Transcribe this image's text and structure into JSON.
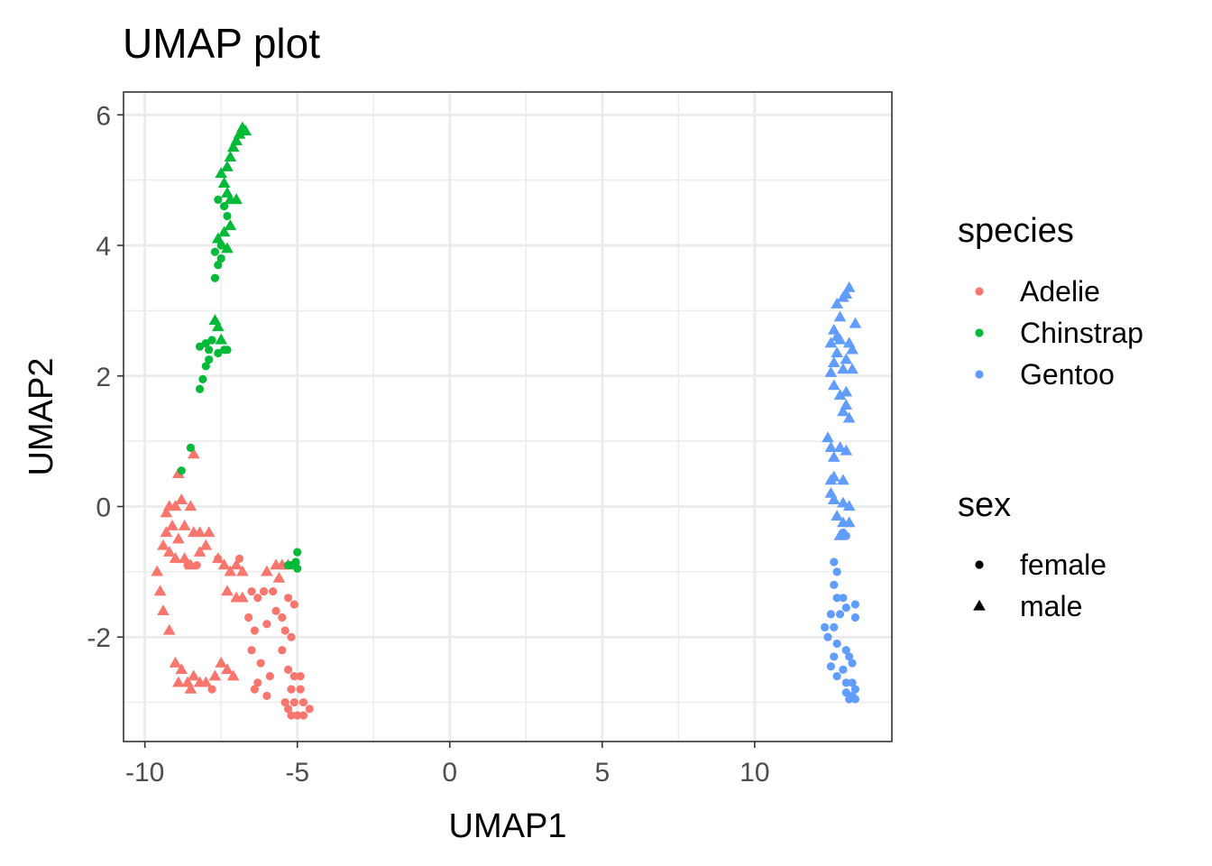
{
  "chart_data": {
    "type": "scatter",
    "title": "UMAP plot",
    "xlabel": "UMAP1",
    "ylabel": "UMAP2",
    "xlim": [
      -10.7,
      14.5
    ],
    "ylim": [
      -3.6,
      6.35
    ],
    "x_ticks": [
      -10,
      -5,
      0,
      5,
      10
    ],
    "x_tick_labels": [
      "-10",
      "-5",
      "0",
      "5",
      "10"
    ],
    "y_ticks": [
      -2,
      0,
      2,
      4,
      6
    ],
    "y_tick_labels": [
      "-2",
      "0",
      "2",
      "4",
      "6"
    ],
    "grid": true,
    "legend_position": "right",
    "colors": {
      "Adelie": "#F8766D",
      "Chinstrap": "#00BA38",
      "Gentoo": "#619CFF"
    },
    "legend": {
      "species": {
        "title": "species",
        "items": [
          "Adelie",
          "Chinstrap",
          "Gentoo"
        ]
      },
      "sex": {
        "title": "sex",
        "items": [
          "female",
          "male"
        ]
      }
    },
    "series": [
      {
        "name": "Adelie",
        "shape_by_sex": true,
        "points": [
          [
            -9.3,
            -0.1,
            "male"
          ],
          [
            -9.2,
            0.0,
            "male"
          ],
          [
            -9.0,
            0.0,
            "male"
          ],
          [
            -8.8,
            0.1,
            "male"
          ],
          [
            -8.5,
            0.0,
            "male"
          ],
          [
            -9.3,
            -0.4,
            "male"
          ],
          [
            -9.1,
            -0.3,
            "male"
          ],
          [
            -8.9,
            -0.5,
            "male"
          ],
          [
            -8.7,
            -0.3,
            "male"
          ],
          [
            -8.4,
            -0.4,
            "male"
          ],
          [
            -8.2,
            -0.4,
            "male"
          ],
          [
            -7.9,
            -0.4,
            "male"
          ],
          [
            -9.4,
            -0.6,
            "male"
          ],
          [
            -9.2,
            -0.7,
            "male"
          ],
          [
            -9.0,
            -0.8,
            "male"
          ],
          [
            -8.7,
            -0.8,
            "male"
          ],
          [
            -8.5,
            -0.9,
            "male"
          ],
          [
            -8.2,
            -0.7,
            "male"
          ],
          [
            -8.0,
            -0.6,
            "male"
          ],
          [
            -8.6,
            -0.9,
            "female"
          ],
          [
            -8.3,
            -0.9,
            "female"
          ],
          [
            -9.6,
            -1.0,
            "male"
          ],
          [
            -9.5,
            -1.3,
            "male"
          ],
          [
            -9.4,
            -1.6,
            "male"
          ],
          [
            -9.2,
            -1.9,
            "male"
          ],
          [
            -9.0,
            -2.4,
            "male"
          ],
          [
            -8.8,
            -2.5,
            "male"
          ],
          [
            -8.9,
            -2.7,
            "male"
          ],
          [
            -8.6,
            -2.7,
            "male"
          ],
          [
            -8.4,
            -2.6,
            "male"
          ],
          [
            -8.5,
            -2.8,
            "male"
          ],
          [
            -8.2,
            -2.7,
            "male"
          ],
          [
            -8.0,
            -2.7,
            "male"
          ],
          [
            -7.8,
            -2.8,
            "female"
          ],
          [
            -7.7,
            -2.6,
            "male"
          ],
          [
            -7.5,
            -2.4,
            "male"
          ],
          [
            -7.3,
            -2.5,
            "male"
          ],
          [
            -7.1,
            -2.6,
            "male"
          ],
          [
            -7.6,
            -0.8,
            "male"
          ],
          [
            -7.4,
            -0.9,
            "male"
          ],
          [
            -7.2,
            -1.0,
            "male"
          ],
          [
            -7.0,
            -0.9,
            "male"
          ],
          [
            -6.8,
            -1.0,
            "male"
          ],
          [
            -7.6,
            -0.8,
            "female"
          ],
          [
            -7.3,
            -1.3,
            "male"
          ],
          [
            -7.0,
            -1.4,
            "male"
          ],
          [
            -6.8,
            -1.4,
            "male"
          ],
          [
            -6.5,
            -1.3,
            "female"
          ],
          [
            -6.3,
            -1.4,
            "female"
          ],
          [
            -6.1,
            -1.3,
            "female"
          ],
          [
            -5.8,
            -1.3,
            "female"
          ],
          [
            -6.6,
            -1.7,
            "female"
          ],
          [
            -6.4,
            -1.9,
            "female"
          ],
          [
            -6.0,
            -1.8,
            "female"
          ],
          [
            -5.7,
            -1.6,
            "female"
          ],
          [
            -5.5,
            -1.7,
            "female"
          ],
          [
            -5.3,
            -1.4,
            "female"
          ],
          [
            -5.1,
            -1.5,
            "female"
          ],
          [
            -6.5,
            -2.2,
            "female"
          ],
          [
            -6.2,
            -2.4,
            "female"
          ],
          [
            -5.9,
            -2.6,
            "female"
          ],
          [
            -6.3,
            -2.7,
            "female"
          ],
          [
            -6.0,
            -2.9,
            "female"
          ],
          [
            -6.4,
            -2.8,
            "female"
          ],
          [
            -5.4,
            -1.9,
            "female"
          ],
          [
            -5.2,
            -2.0,
            "female"
          ],
          [
            -5.5,
            -2.2,
            "female"
          ],
          [
            -5.3,
            -2.5,
            "female"
          ],
          [
            -5.1,
            -2.6,
            "female"
          ],
          [
            -4.9,
            -2.6,
            "female"
          ],
          [
            -5.2,
            -2.8,
            "female"
          ],
          [
            -4.9,
            -2.8,
            "female"
          ],
          [
            -5.1,
            -3.0,
            "female"
          ],
          [
            -5.3,
            -3.1,
            "female"
          ],
          [
            -5.0,
            -3.2,
            "female"
          ],
          [
            -4.8,
            -3.2,
            "female"
          ],
          [
            -4.6,
            -3.1,
            "female"
          ],
          [
            -4.8,
            -3.0,
            "female"
          ],
          [
            -5.4,
            -3.0,
            "female"
          ],
          [
            -5.2,
            -3.2,
            "female"
          ],
          [
            -6.0,
            -1.0,
            "male"
          ],
          [
            -5.7,
            -0.9,
            "male"
          ],
          [
            -5.6,
            -1.1,
            "male"
          ],
          [
            -5.5,
            -0.9,
            "male"
          ],
          [
            -5.3,
            -0.9,
            "male"
          ],
          [
            -6.9,
            -0.8,
            "female"
          ],
          [
            -8.9,
            0.5,
            "male"
          ],
          [
            -8.4,
            0.8,
            "male"
          ]
        ]
      },
      {
        "name": "Chinstrap",
        "shape_by_sex": true,
        "points": [
          [
            -6.8,
            5.8,
            "male"
          ],
          [
            -6.7,
            5.75,
            "male"
          ],
          [
            -6.9,
            5.7,
            "male"
          ],
          [
            -7.0,
            5.6,
            "male"
          ],
          [
            -7.1,
            5.5,
            "male"
          ],
          [
            -7.2,
            5.35,
            "male"
          ],
          [
            -7.3,
            5.2,
            "male"
          ],
          [
            -7.5,
            5.1,
            "male"
          ],
          [
            -7.4,
            4.95,
            "male"
          ],
          [
            -7.3,
            4.8,
            "male"
          ],
          [
            -7.2,
            4.7,
            "male"
          ],
          [
            -7.0,
            4.7,
            "male"
          ],
          [
            -7.6,
            4.7,
            "female"
          ],
          [
            -7.4,
            4.6,
            "female"
          ],
          [
            -7.3,
            4.45,
            "female"
          ],
          [
            -7.2,
            4.3,
            "male"
          ],
          [
            -7.4,
            4.2,
            "male"
          ],
          [
            -7.6,
            4.1,
            "male"
          ],
          [
            -7.5,
            4.0,
            "female"
          ],
          [
            -7.3,
            3.95,
            "male"
          ],
          [
            -7.7,
            3.9,
            "female"
          ],
          [
            -7.5,
            3.8,
            "female"
          ],
          [
            -7.6,
            3.7,
            "female"
          ],
          [
            -7.7,
            3.5,
            "female"
          ],
          [
            -7.7,
            2.85,
            "male"
          ],
          [
            -7.6,
            2.75,
            "male"
          ],
          [
            -7.5,
            2.55,
            "male"
          ],
          [
            -7.8,
            2.55,
            "female"
          ],
          [
            -8.0,
            2.5,
            "female"
          ],
          [
            -8.2,
            2.45,
            "female"
          ],
          [
            -7.4,
            2.4,
            "female"
          ],
          [
            -7.9,
            2.4,
            "female"
          ],
          [
            -7.6,
            2.35,
            "female"
          ],
          [
            -7.3,
            2.4,
            "female"
          ],
          [
            -7.9,
            2.25,
            "female"
          ],
          [
            -8.0,
            2.15,
            "female"
          ],
          [
            -8.1,
            1.95,
            "female"
          ],
          [
            -8.2,
            1.8,
            "female"
          ],
          [
            -8.5,
            0.9,
            "female"
          ],
          [
            -8.8,
            0.55,
            "female"
          ],
          [
            -5.0,
            -0.7,
            "female"
          ],
          [
            -5.05,
            -0.85,
            "female"
          ],
          [
            -5.2,
            -0.9,
            "female"
          ],
          [
            -5.0,
            -0.95,
            "female"
          ],
          [
            -5.3,
            -0.9,
            "female"
          ]
        ]
      },
      {
        "name": "Gentoo",
        "shape_by_sex": true,
        "points": [
          [
            13.1,
            3.35,
            "male"
          ],
          [
            13.0,
            3.25,
            "male"
          ],
          [
            12.9,
            3.2,
            "male"
          ],
          [
            12.7,
            3.1,
            "male"
          ],
          [
            12.8,
            2.9,
            "male"
          ],
          [
            13.3,
            2.8,
            "male"
          ],
          [
            12.6,
            2.7,
            "male"
          ],
          [
            12.7,
            2.6,
            "male"
          ],
          [
            12.8,
            2.55,
            "male"
          ],
          [
            12.5,
            2.5,
            "male"
          ],
          [
            13.1,
            2.5,
            "male"
          ],
          [
            13.2,
            2.4,
            "male"
          ],
          [
            12.7,
            2.35,
            "male"
          ],
          [
            12.6,
            2.2,
            "male"
          ],
          [
            13.0,
            2.25,
            "male"
          ],
          [
            12.5,
            2.05,
            "male"
          ],
          [
            12.9,
            2.1,
            "male"
          ],
          [
            13.2,
            2.1,
            "male"
          ],
          [
            12.6,
            1.85,
            "male"
          ],
          [
            12.8,
            1.7,
            "male"
          ],
          [
            13.0,
            1.75,
            "male"
          ],
          [
            12.9,
            1.45,
            "male"
          ],
          [
            13.1,
            1.35,
            "male"
          ],
          [
            13.0,
            1.55,
            "male"
          ],
          [
            12.4,
            1.05,
            "male"
          ],
          [
            12.5,
            0.9,
            "male"
          ],
          [
            12.8,
            0.9,
            "male"
          ],
          [
            13.0,
            0.85,
            "male"
          ],
          [
            12.6,
            0.75,
            "male"
          ],
          [
            12.5,
            0.4,
            "male"
          ],
          [
            12.6,
            0.45,
            "male"
          ],
          [
            12.9,
            0.4,
            "male"
          ],
          [
            12.5,
            0.2,
            "male"
          ],
          [
            12.6,
            0.1,
            "male"
          ],
          [
            12.9,
            0.05,
            "male"
          ],
          [
            13.1,
            0.0,
            "male"
          ],
          [
            12.7,
            -0.15,
            "male"
          ],
          [
            12.9,
            -0.25,
            "male"
          ],
          [
            13.1,
            -0.25,
            "male"
          ],
          [
            12.8,
            -0.45,
            "male"
          ],
          [
            12.9,
            -0.4,
            "female"
          ],
          [
            13.0,
            -0.45,
            "female"
          ],
          [
            12.6,
            -0.85,
            "female"
          ],
          [
            12.7,
            -1.0,
            "female"
          ],
          [
            12.6,
            -1.2,
            "female"
          ],
          [
            12.7,
            -1.4,
            "female"
          ],
          [
            12.9,
            -1.4,
            "female"
          ],
          [
            13.0,
            -1.55,
            "female"
          ],
          [
            13.3,
            -1.5,
            "female"
          ],
          [
            12.5,
            -1.65,
            "female"
          ],
          [
            12.8,
            -1.65,
            "female"
          ],
          [
            12.3,
            -1.85,
            "female"
          ],
          [
            12.6,
            -1.85,
            "female"
          ],
          [
            13.3,
            -1.7,
            "female"
          ],
          [
            12.4,
            -2.0,
            "female"
          ],
          [
            12.7,
            -2.1,
            "female"
          ],
          [
            12.6,
            -2.3,
            "female"
          ],
          [
            13.0,
            -2.2,
            "female"
          ],
          [
            13.1,
            -2.3,
            "female"
          ],
          [
            12.5,
            -2.45,
            "female"
          ],
          [
            12.9,
            -2.5,
            "female"
          ],
          [
            13.2,
            -2.4,
            "female"
          ],
          [
            12.7,
            -2.6,
            "female"
          ],
          [
            13.0,
            -2.7,
            "female"
          ],
          [
            13.2,
            -2.7,
            "female"
          ],
          [
            13.3,
            -2.8,
            "female"
          ],
          [
            13.0,
            -2.85,
            "female"
          ],
          [
            13.2,
            -2.9,
            "female"
          ],
          [
            13.1,
            -2.95,
            "female"
          ],
          [
            13.3,
            -2.95,
            "female"
          ]
        ]
      }
    ]
  }
}
